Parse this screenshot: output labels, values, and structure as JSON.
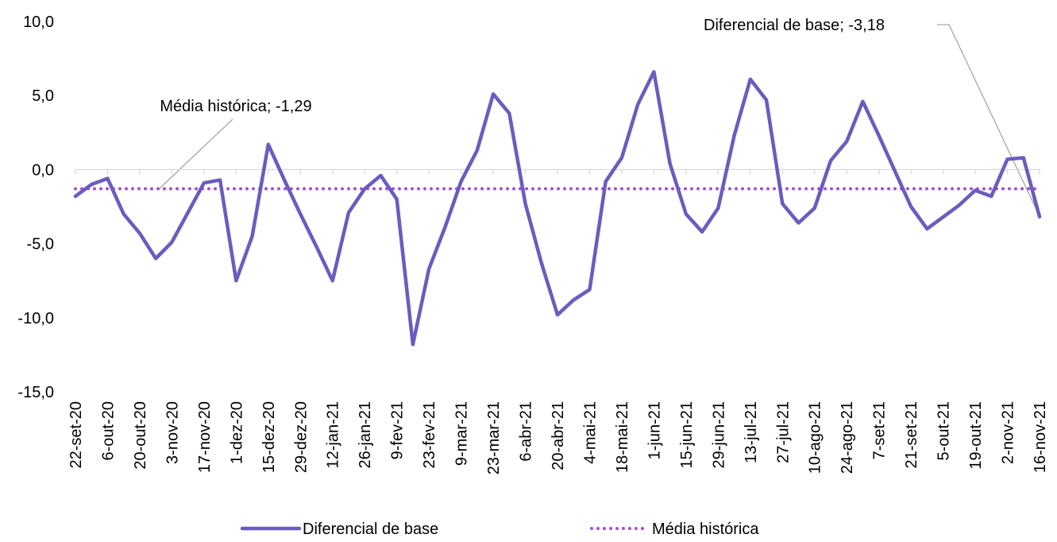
{
  "chart_data": {
    "type": "line",
    "categories": [
      "22-set-20",
      null,
      "6-out-20",
      null,
      "20-out-20",
      null,
      "3-nov-20",
      null,
      "17-nov-20",
      null,
      "1-dez-20",
      null,
      "15-dez-20",
      null,
      "29-dez-20",
      null,
      "12-jan-21",
      null,
      "26-jan-21",
      null,
      "9-fev-21",
      null,
      "23-fev-21",
      null,
      "9-mar-21",
      null,
      "23-mar-21",
      null,
      "6-abr-21",
      null,
      "20-abr-21",
      null,
      "4-mai-21",
      null,
      "18-mai-21",
      null,
      "1-jun-21",
      null,
      "15-jun-21",
      null,
      "29-jun-21",
      null,
      "13-jul-21",
      null,
      "27-jul-21",
      null,
      "10-ago-21",
      null,
      "24-ago-21",
      null,
      "7-set-21",
      null,
      "21-set-21",
      null,
      "5-out-21",
      null,
      "19-out-21",
      null,
      "2-nov-21",
      null,
      "16-nov-21"
    ],
    "series": [
      {
        "name": "Diferencial de base",
        "color": "#6a5cbf",
        "style": "solid",
        "values": [
          -1.8,
          -1.0,
          -0.6,
          -3.0,
          -4.3,
          -6.0,
          -4.9,
          -2.9,
          -0.9,
          -0.7,
          -7.5,
          -4.5,
          1.7,
          -0.7,
          -3.0,
          -5.2,
          -7.5,
          -2.9,
          -1.3,
          -0.4,
          -2.0,
          -11.8,
          -6.7,
          -3.9,
          -0.8,
          1.3,
          5.1,
          3.8,
          -2.3,
          -6.3,
          -9.8,
          -8.8,
          -8.1,
          -0.8,
          0.8,
          4.4,
          6.6,
          0.4,
          -3.0,
          -4.2,
          -2.6,
          2.3,
          6.1,
          4.7,
          -2.3,
          -3.6,
          -2.6,
          0.6,
          1.9,
          4.6,
          2.3,
          -0.1,
          -2.5,
          -4.0,
          -3.2,
          -2.4,
          -1.4,
          -1.8,
          0.7,
          0.8,
          -3.18
        ]
      },
      {
        "name": "Média histórica",
        "color": "#a050d0",
        "style": "dotted",
        "values": [
          -1.29,
          -1.29,
          -1.29,
          -1.29,
          -1.29,
          -1.29,
          -1.29,
          -1.29,
          -1.29,
          -1.29,
          -1.29,
          -1.29,
          -1.29,
          -1.29,
          -1.29,
          -1.29,
          -1.29,
          -1.29,
          -1.29,
          -1.29,
          -1.29,
          -1.29,
          -1.29,
          -1.29,
          -1.29,
          -1.29,
          -1.29,
          -1.29,
          -1.29,
          -1.29,
          -1.29,
          -1.29,
          -1.29,
          -1.29,
          -1.29,
          -1.29,
          -1.29,
          -1.29,
          -1.29,
          -1.29,
          -1.29,
          -1.29,
          -1.29,
          -1.29,
          -1.29,
          -1.29,
          -1.29,
          -1.29,
          -1.29,
          -1.29,
          -1.29,
          -1.29,
          -1.29,
          -1.29,
          -1.29,
          -1.29,
          -1.29,
          -1.29,
          -1.29,
          -1.29,
          -1.29
        ]
      }
    ],
    "annotations": [
      "Média histórica; -1,29",
      "Diferencial de base; -3,18"
    ],
    "ylim": [
      -15,
      10
    ],
    "yticks": [
      {
        "value": 10,
        "label": "10,0"
      },
      {
        "value": 5,
        "label": "5,0"
      },
      {
        "value": 0,
        "label": "0,0"
      },
      {
        "value": -5,
        "label": "-5,0"
      },
      {
        "value": -10,
        "label": "-10,0"
      },
      {
        "value": -15,
        "label": "-15,0"
      }
    ],
    "grid": false
  }
}
